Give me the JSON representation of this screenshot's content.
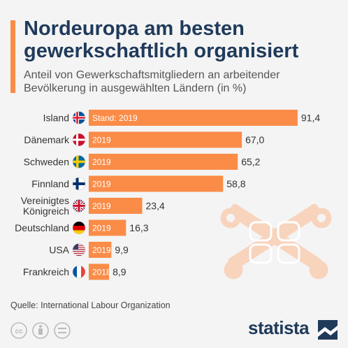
{
  "header": {
    "title": "Nordeuropa am besten gewerkschaftlich organisiert",
    "subtitle": "Anteil von Gewerkschaftsmitgliedern an arbeitender Bevölkerung in ausgewählten Ländern (in %)"
  },
  "colors": {
    "accent": "#fa8c48",
    "title": "#1f3a5b",
    "bar": "#fa8c48",
    "brand": "#1f3a5b"
  },
  "chart_data": {
    "type": "bar",
    "orientation": "horizontal",
    "categories": [
      "Island",
      "Dänemark",
      "Schweden",
      "Finnland",
      "Vereinigtes Königreich",
      "Deutschland",
      "USA",
      "Frankreich"
    ],
    "category_lines": [
      [
        "Island"
      ],
      [
        "Dänemark"
      ],
      [
        "Schweden"
      ],
      [
        "Finnland"
      ],
      [
        "Vereinigtes",
        "Königreich"
      ],
      [
        "Deutschland"
      ],
      [
        "USA"
      ],
      [
        "Frankreich"
      ]
    ],
    "values": [
      91.4,
      67.0,
      65.2,
      58.8,
      23.4,
      16.3,
      9.9,
      8.9
    ],
    "value_labels": [
      "91,4",
      "67,0",
      "65,2",
      "58,8",
      "23,4",
      "16,3",
      "9,9",
      "8,9"
    ],
    "bar_labels": [
      "Stand: 2019",
      "2019",
      "2019",
      "2019",
      "2019",
      "2019",
      "2019",
      "2018"
    ],
    "flags": [
      "iceland-flag",
      "denmark-flag",
      "sweden-flag",
      "finland-flag",
      "uk-flag",
      "germany-flag",
      "usa-flag",
      "france-flag"
    ],
    "xlim": [
      0,
      100
    ],
    "grid": false,
    "legend": "none"
  },
  "footer": {
    "source": "Quelle: International Labour Organization",
    "brand": "statista"
  }
}
